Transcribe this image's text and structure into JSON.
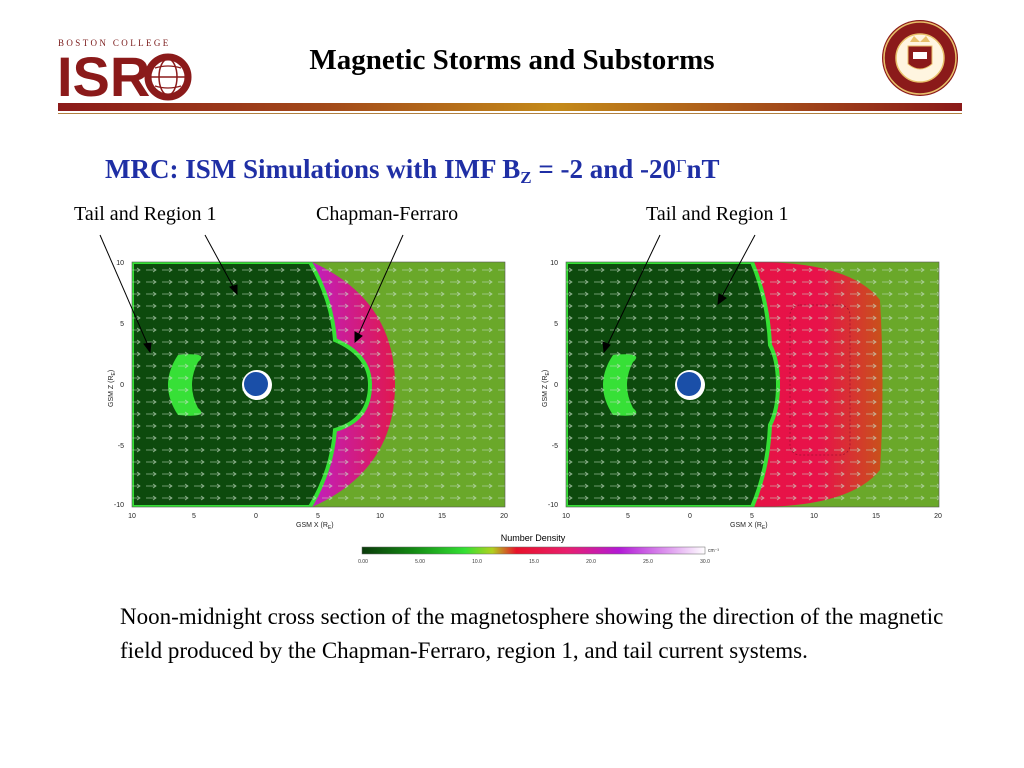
{
  "header": {
    "logo_small": "BOSTON COLLEGE",
    "logo_main": "ISR",
    "title": "Magnetic Storms  and Substorms",
    "seal_text": "COLLEGIUM BOSTONIENSE · FUND. MDCCCLXIII"
  },
  "slide": {
    "subtitle_pre": "MRC:  ISM Simulations with IMF B",
    "subtitle_sub": "Z",
    "subtitle_post": " = -2 and -20",
    "subtitle_glyph": "Γ",
    "subtitle_end": "nT",
    "annotations": {
      "left_tail": "Tail and Region 1",
      "left_cf": "Chapman-Ferraro",
      "right_tail": "Tail and Region 1"
    },
    "caption": "Noon-midnight cross section of the magnetosphere showing the direction of the magnetic field produced by the Chapman-Ferraro, region 1, and tail current systems."
  },
  "plots": {
    "xlabel": "GSM X (R",
    "xlabel_sub": "E",
    "ylabel": "GSM Z (R",
    "x_ticks": [
      "10",
      "5",
      "0",
      "5",
      "10",
      "15",
      "20"
    ],
    "y_ticks": [
      "10",
      "5",
      "0",
      "-5",
      "-10"
    ],
    "colorbar_title": "Number Density",
    "colorbar_ticks": [
      "0.00",
      "5.00",
      "10.0",
      "15.0",
      "20.0",
      "25.0",
      "30.0"
    ],
    "colorbar_unit": "cm⁻³",
    "colors": {
      "dark_green": "#0d4a0d",
      "bright_green": "#2ed62e",
      "olive_green": "#5ca82a",
      "red": "#e8123a",
      "magenta": "#b21ad6",
      "earth": "#1a4fa8"
    }
  }
}
